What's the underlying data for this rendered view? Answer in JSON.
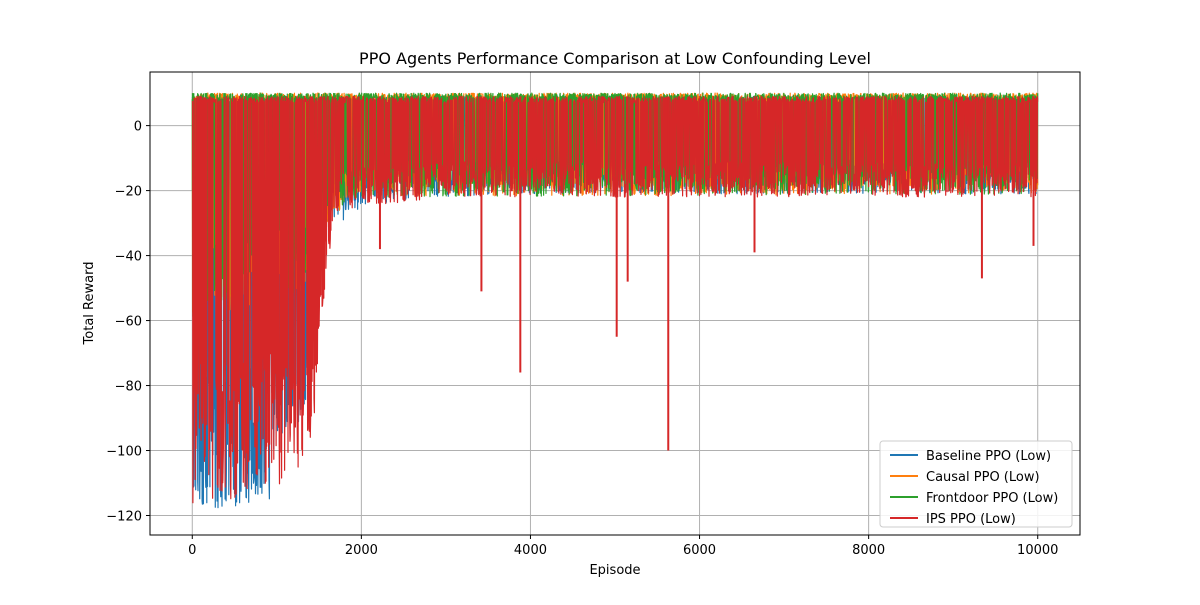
{
  "chart_data": {
    "type": "line",
    "title": "PPO Agents Performance Comparison at Low Confounding Level",
    "xlabel": "Episode",
    "ylabel": "Total Reward",
    "xlim": [
      -500,
      10500
    ],
    "ylim": [
      -126,
      16.5
    ],
    "xticks": [
      0,
      2000,
      4000,
      6000,
      8000,
      10000
    ],
    "xtick_labels": [
      "0",
      "2000",
      "4000",
      "6000",
      "8000",
      "10000"
    ],
    "yticks": [
      -120,
      -100,
      -80,
      -60,
      -40,
      -20,
      0
    ],
    "ytick_labels": [
      "−120",
      "−100",
      "−80",
      "−60",
      "−40",
      "−20",
      "0"
    ],
    "grid": true,
    "legend_position": "lower-right",
    "episodes": 10000,
    "series": [
      {
        "name": "Baseline PPO (Low)",
        "color": "#1f77b4",
        "upper_band": [
          [
            0,
            9
          ],
          [
            10000,
            9
          ]
        ],
        "lower_envelope": [
          [
            0,
            -118
          ],
          [
            300,
            -119
          ],
          [
            700,
            -118
          ],
          [
            900,
            -117
          ],
          [
            1000,
            -100
          ],
          [
            1150,
            -90
          ],
          [
            1250,
            -92
          ],
          [
            1300,
            -115
          ],
          [
            1350,
            -80
          ],
          [
            1450,
            -55
          ],
          [
            1550,
            -35
          ],
          [
            1650,
            -28
          ],
          [
            1800,
            -30
          ],
          [
            2000,
            -25
          ],
          [
            2500,
            -23
          ],
          [
            3000,
            -22
          ],
          [
            4000,
            -21
          ],
          [
            6000,
            -21
          ],
          [
            8000,
            -21
          ],
          [
            10000,
            -21
          ]
        ]
      },
      {
        "name": "Causal PPO (Low)",
        "color": "#ff7f0e",
        "upper_band": [
          [
            0,
            10
          ],
          [
            10000,
            10
          ]
        ],
        "lower_envelope": [
          [
            0,
            -60
          ],
          [
            1400,
            -50
          ],
          [
            1600,
            -30
          ],
          [
            2000,
            -22
          ],
          [
            10000,
            -21
          ]
        ]
      },
      {
        "name": "Frontdoor PPO (Low)",
        "color": "#2ca02c",
        "upper_band": [
          [
            0,
            10
          ],
          [
            10000,
            10
          ]
        ],
        "lower_envelope": [
          [
            0,
            -60
          ],
          [
            1400,
            -50
          ],
          [
            1600,
            -28
          ],
          [
            2000,
            -22
          ],
          [
            10000,
            -21
          ]
        ],
        "early_dips": [
          [
            10,
            -20
          ],
          [
            160,
            -20
          ],
          [
            230,
            -10
          ],
          [
            380,
            -8
          ],
          [
            640,
            -20
          ],
          [
            690,
            -18
          ],
          [
            760,
            -15
          ],
          [
            1160,
            -20
          ],
          [
            1680,
            2
          ]
        ]
      },
      {
        "name": "IPS PPO (Low)",
        "color": "#d62728",
        "upper_band": [
          [
            0,
            9
          ],
          [
            10000,
            9
          ]
        ],
        "lower_envelope": [
          [
            0,
            -116
          ],
          [
            300,
            -118
          ],
          [
            700,
            -115
          ],
          [
            1000,
            -112
          ],
          [
            1150,
            -108
          ],
          [
            1300,
            -105
          ],
          [
            1400,
            -103
          ],
          [
            1500,
            -70
          ],
          [
            1600,
            -42
          ],
          [
            1700,
            -27
          ],
          [
            2000,
            -25
          ],
          [
            2500,
            -24
          ],
          [
            3000,
            -22
          ],
          [
            10000,
            -22
          ]
        ],
        "spikes": [
          [
            2220,
            -38
          ],
          [
            3420,
            -51
          ],
          [
            3880,
            -76
          ],
          [
            5020,
            -65
          ],
          [
            5150,
            -48
          ],
          [
            5630,
            -100
          ],
          [
            6650,
            -39
          ],
          [
            9340,
            -47
          ],
          [
            9950,
            -37
          ]
        ]
      }
    ]
  }
}
